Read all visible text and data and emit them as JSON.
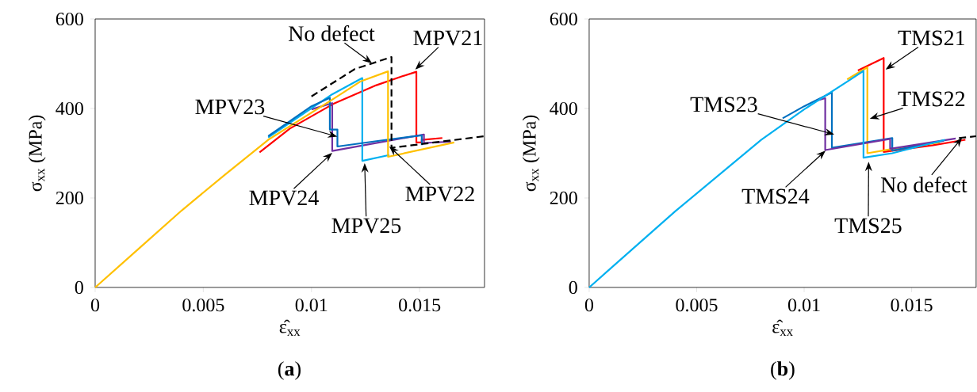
{
  "chart_data": [
    {
      "type": "line",
      "title": "(**a**)",
      "xlabel": "ε̂$_{xx}$",
      "ylabel": "σ$_{xx}$ (MPa)",
      "xlim": [
        0,
        0.018
      ],
      "ylim": [
        0,
        600
      ],
      "xticks": [
        0,
        0.005,
        0.01,
        0.015
      ],
      "yticks": [
        0,
        200,
        400,
        600
      ],
      "annotations": [
        {
          "text": "No defect",
          "x": 0.0128,
          "y": 501
        },
        {
          "text": "MPV21",
          "x": 0.0148,
          "y": 487
        },
        {
          "text": "MPV23",
          "x": 0.0112,
          "y": 337
        },
        {
          "text": "MPV24",
          "x": 0.01096,
          "y": 301
        },
        {
          "text": "MPV25",
          "x": 0.01246,
          "y": 278
        },
        {
          "text": "MPV22",
          "x": 0.0136,
          "y": 315
        }
      ],
      "series": [
        {
          "color": "#ff0000",
          "x": [
            0.0076,
            0.009,
            0.011,
            0.013,
            0.0142,
            0.01485,
            0.01485,
            0.0151,
            0.0151,
            0.01605
          ],
          "values": [
            302,
            355,
            410,
            452,
            472,
            482,
            324,
            324,
            330,
            334
          ]
        },
        {
          "color": "#7030a0",
          "x": [
            0.01,
            0.01096,
            0.01096,
            0.0152,
            0.0152,
            0.01645
          ],
          "values": [
            398,
            412,
            305,
            342,
            323,
            326
          ]
        },
        {
          "color": "#00b0f0",
          "x": [
            0.008,
            0.0109,
            0.01235,
            0.01235,
            0.0136
          ],
          "values": [
            335,
            430,
            468,
            283,
            296
          ]
        },
        {
          "color": "#0070c0",
          "x": [
            0.008,
            0.01,
            0.01085,
            0.01085,
            0.0112,
            0.0112,
            0.013,
            0.0151,
            0.0151
          ],
          "values": [
            338,
            405,
            424,
            353,
            353,
            315,
            327,
            340,
            318
          ]
        },
        {
          "color": "#000000",
          "line_style": "dashed",
          "x": [
            0.01,
            0.012,
            0.0137,
            0.0137,
            0.015,
            0.018
          ],
          "values": [
            427,
            488,
            515,
            312,
            320,
            338
          ]
        },
        {
          "color": "#ffc000",
          "x": [
            0,
            0.002,
            0.004,
            0.006,
            0.008,
            0.0109,
            0.01225,
            0.01354,
            0.01354,
            0.0166
          ],
          "values": [
            0,
            86,
            172,
            252,
            330,
            418,
            460,
            483,
            292,
            324
          ]
        }
      ]
    },
    {
      "type": "line",
      "title": "(**b**)",
      "xlabel": "ε̂$_{xx}$",
      "ylabel": "σ$_{xx}$ (MPa)",
      "xlim": [
        0,
        0.018
      ],
      "ylim": [
        0,
        600
      ],
      "xticks": [
        0,
        0.005,
        0.01,
        0.015
      ],
      "yticks": [
        0,
        200,
        400,
        600
      ],
      "annotations": [
        {
          "text": "TMS21",
          "x": 0.01379,
          "y": 487
        },
        {
          "text": "TMS22",
          "x": 0.01305,
          "y": 377
        },
        {
          "text": "TMS23",
          "x": 0.0114,
          "y": 342
        },
        {
          "text": "TMS24",
          "x": 0.011,
          "y": 306
        },
        {
          "text": "TMS25",
          "x": 0.013,
          "y": 281
        },
        {
          "text": "No defect",
          "x": 0.01735,
          "y": 335
        }
      ],
      "series": [
        {
          "color": "#000000",
          "line_style": "dashed",
          "x": [
            0.0172,
            0.018
          ],
          "values": [
            334,
            338
          ]
        },
        {
          "color": "#ff0000",
          "x": [
            0.0125,
            0.0137,
            0.0137,
            0.0145,
            0.016,
            0.0175
          ],
          "values": [
            485,
            513,
            303,
            308,
            318,
            330
          ]
        },
        {
          "color": "#ffc000",
          "x": [
            0.012,
            0.01294,
            0.01294,
            0.01404,
            0.0163
          ],
          "values": [
            465,
            492,
            300,
            309,
            324
          ]
        },
        {
          "color": "#0070c0",
          "x": [
            0.009,
            0.01,
            0.01129,
            0.01129,
            0.0141,
            0.0141,
            0.0165
          ],
          "values": [
            378,
            405,
            436,
            312,
            334,
            306,
            328
          ]
        },
        {
          "color": "#7030a0",
          "x": [
            0.0106,
            0.01098,
            0.01098,
            0.014,
            0.014,
            0.01705
          ],
          "values": [
            418,
            423,
            307,
            332,
            310,
            333
          ]
        },
        {
          "color": "#00b0f0",
          "x": [
            0,
            0.002,
            0.004,
            0.006,
            0.008,
            0.01,
            0.012,
            0.01276,
            0.01276,
            0.0141,
            0.01655
          ],
          "values": [
            0,
            85,
            170,
            250,
            330,
            398,
            460,
            484,
            290,
            300,
            330
          ]
        }
      ]
    }
  ]
}
